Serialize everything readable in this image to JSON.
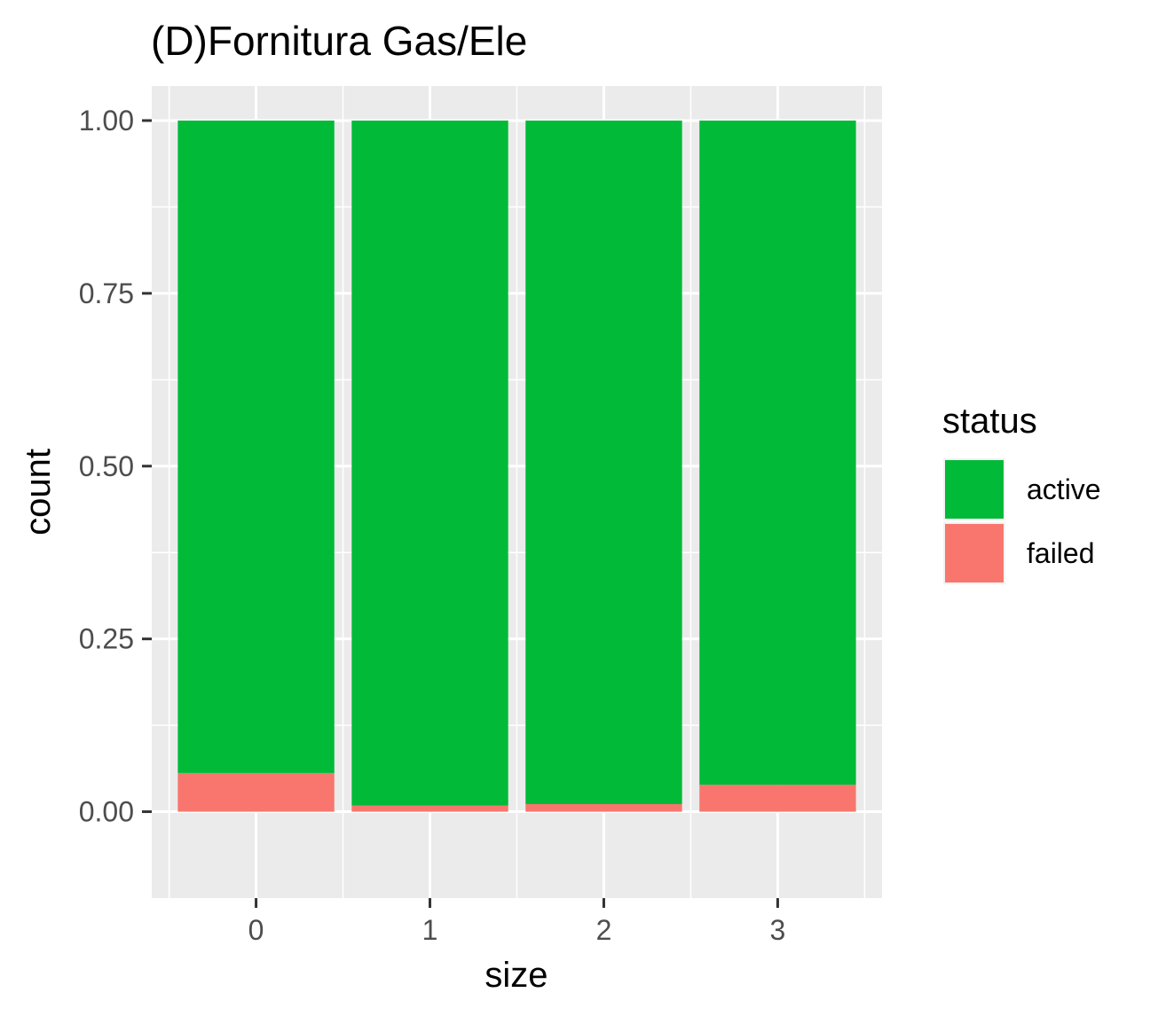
{
  "chart_data": {
    "type": "bar",
    "stacked": true,
    "position": "fill",
    "title": "(D)Fornitura Gas/Ele",
    "xlabel": "size",
    "ylabel": "count",
    "categories": [
      "0",
      "1",
      "2",
      "3"
    ],
    "y_ticks": [
      "0.00",
      "0.25",
      "0.50",
      "0.75",
      "1.00"
    ],
    "y_tick_values": [
      0,
      0.25,
      0.5,
      0.75,
      1.0
    ],
    "ylim": [
      -0.125,
      1.05
    ],
    "grid": true,
    "legend_position": "right",
    "legend_title": "status",
    "series": [
      {
        "name": "failed",
        "color": "#F8766D",
        "values": [
          0.056,
          0.009,
          0.011,
          0.039
        ]
      },
      {
        "name": "active",
        "color": "#00BA38",
        "values": [
          0.944,
          0.991,
          0.989,
          0.961
        ]
      }
    ],
    "legend_order": [
      "active",
      "failed"
    ],
    "panel_background": "#EBEBEB",
    "grid_color": "#FFFFFF"
  }
}
